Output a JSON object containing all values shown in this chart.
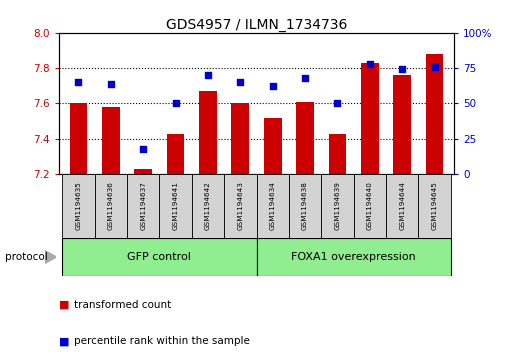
{
  "title": "GDS4957 / ILMN_1734736",
  "samples": [
    "GSM1194635",
    "GSM1194636",
    "GSM1194637",
    "GSM1194641",
    "GSM1194642",
    "GSM1194643",
    "GSM1194634",
    "GSM1194638",
    "GSM1194639",
    "GSM1194640",
    "GSM1194644",
    "GSM1194645"
  ],
  "transformed_counts": [
    7.6,
    7.58,
    7.23,
    7.43,
    7.67,
    7.6,
    7.52,
    7.61,
    7.43,
    7.83,
    7.76,
    7.88
  ],
  "percentile_ranks": [
    65,
    64,
    18,
    50,
    70,
    65,
    62,
    68,
    50,
    78,
    74,
    76
  ],
  "bar_bottom": 7.2,
  "ylim_left": [
    7.2,
    8.0
  ],
  "ylim_right": [
    0,
    100
  ],
  "yticks_left": [
    7.2,
    7.4,
    7.6,
    7.8,
    8.0
  ],
  "yticks_right": [
    0,
    25,
    50,
    75,
    100
  ],
  "ytick_labels_right": [
    "0",
    "25",
    "50",
    "75",
    "100%"
  ],
  "bar_color": "#cc0000",
  "dot_color": "#0000cc",
  "group1_label": "GFP control",
  "group2_label": "FOXA1 overexpression",
  "group1_indices": [
    0,
    1,
    2,
    3,
    4,
    5
  ],
  "group2_indices": [
    6,
    7,
    8,
    9,
    10,
    11
  ],
  "group_box_color": "#90ee90",
  "sample_box_color": "#d3d3d3",
  "legend_bar_label": "transformed count",
  "legend_dot_label": "percentile rank within the sample",
  "protocol_label": "protocol",
  "figsize": [
    5.13,
    3.63
  ],
  "dpi": 100
}
